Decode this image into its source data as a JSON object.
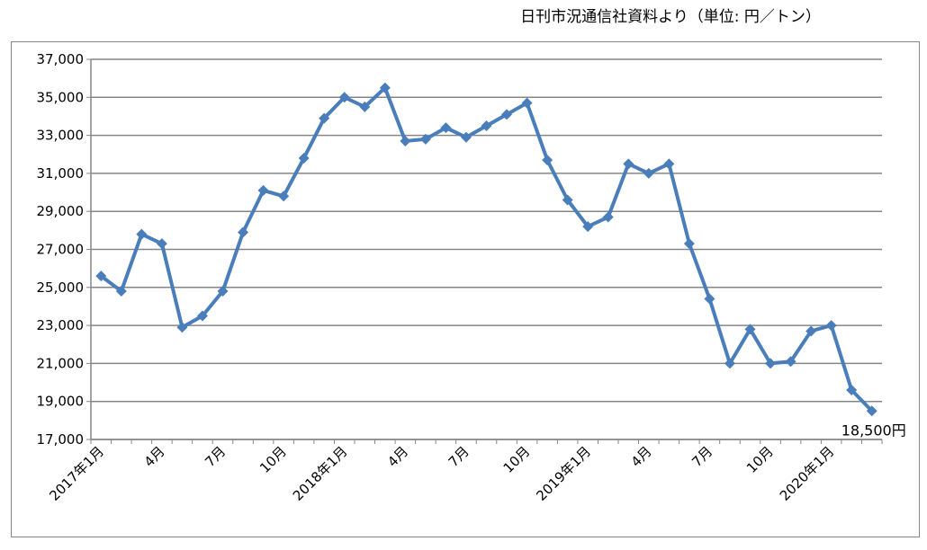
{
  "chart_data": {
    "type": "line",
    "title": "日刊市況通信社資料より（単位: 円／トン）",
    "categories": [
      "2017年1月",
      null,
      null,
      "4月",
      null,
      null,
      "7月",
      null,
      null,
      "10月",
      null,
      null,
      "2018年1月",
      null,
      null,
      "4月",
      null,
      null,
      "7月",
      null,
      null,
      "10月",
      null,
      null,
      "2019年1月",
      null,
      null,
      "4月",
      null,
      null,
      "7月",
      null,
      null,
      "10月",
      null,
      null,
      "2020年1月",
      null,
      null
    ],
    "series": [
      {
        "color": "#4a7ebb",
        "values": [
          25600,
          24800,
          27800,
          27300,
          22900,
          23500,
          24800,
          27900,
          30100,
          29800,
          31800,
          33900,
          35000,
          34500,
          35500,
          32700,
          32800,
          33400,
          32900,
          33500,
          34100,
          34700,
          31700,
          29600,
          28200,
          28700,
          31500,
          31000,
          31500,
          27300,
          24400,
          21000,
          22800,
          21000,
          21100,
          22700,
          23000,
          19600,
          18500
        ],
        "value_labels": [
          null,
          null,
          null,
          null,
          null,
          null,
          null,
          null,
          null,
          null,
          null,
          null,
          null,
          null,
          null,
          null,
          null,
          null,
          null,
          null,
          null,
          null,
          null,
          null,
          null,
          null,
          null,
          null,
          null,
          null,
          null,
          null,
          null,
          null,
          null,
          null,
          null,
          null,
          "18,500円"
        ]
      }
    ],
    "ylim": [
      17000,
      37000
    ],
    "yticks": [
      {
        "value": 17000,
        "label": "17,000"
      },
      {
        "value": 19000,
        "label": "19,000"
      },
      {
        "value": 21000,
        "label": "21,000"
      },
      {
        "value": 23000,
        "label": "23,000"
      },
      {
        "value": 25000,
        "label": "25,000"
      },
      {
        "value": 27000,
        "label": "27,000"
      },
      {
        "value": 29000,
        "label": "29,000"
      },
      {
        "value": 31000,
        "label": "31,000"
      },
      {
        "value": 33000,
        "label": "33,000"
      },
      {
        "value": 35000,
        "label": "35,000"
      },
      {
        "value": 37000,
        "label": "37,000"
      }
    ],
    "grid": true
  }
}
